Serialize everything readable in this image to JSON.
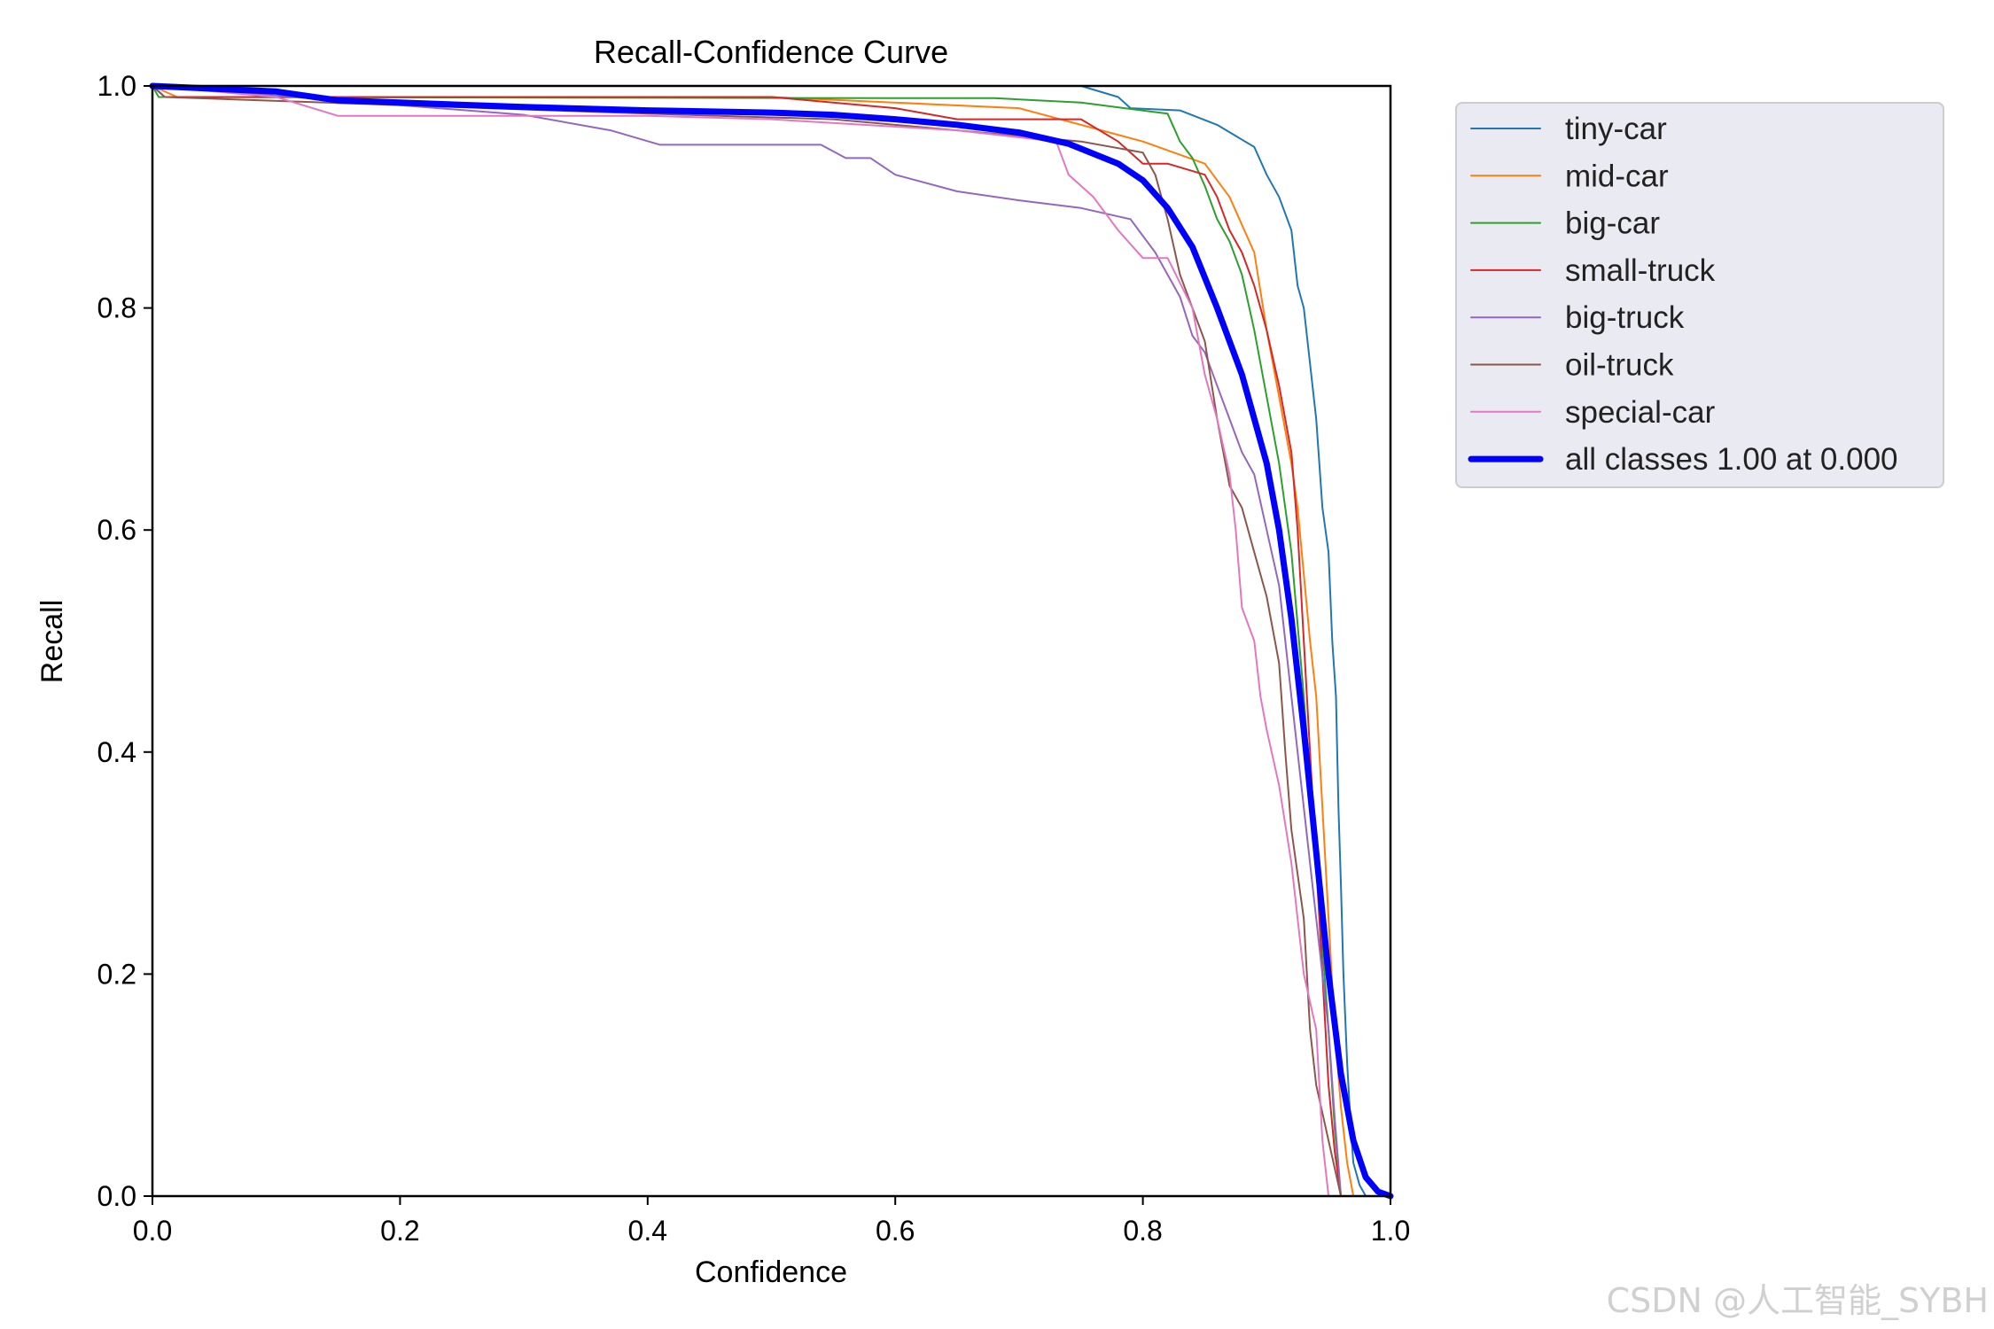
{
  "chart_data": {
    "type": "line",
    "title": "Recall-Confidence Curve",
    "xlabel": "Confidence",
    "ylabel": "Recall",
    "xlim": [
      0,
      1
    ],
    "ylim": [
      0,
      1
    ],
    "xticks": [
      "0.0",
      "0.2",
      "0.4",
      "0.6",
      "0.8",
      "1.0"
    ],
    "yticks": [
      "0.0",
      "0.2",
      "0.4",
      "0.6",
      "0.8",
      "1.0"
    ],
    "grid": false,
    "legend_position": "outside-top-right",
    "series": [
      {
        "name": "tiny-car",
        "color": "#1f77b4",
        "width": 2,
        "points": [
          [
            0,
            1.0
          ],
          [
            0.75,
            1.0
          ],
          [
            0.78,
            0.99
          ],
          [
            0.79,
            0.98
          ],
          [
            0.83,
            0.978
          ],
          [
            0.86,
            0.965
          ],
          [
            0.89,
            0.945
          ],
          [
            0.9,
            0.92
          ],
          [
            0.91,
            0.9
          ],
          [
            0.92,
            0.87
          ],
          [
            0.925,
            0.82
          ],
          [
            0.93,
            0.8
          ],
          [
            0.935,
            0.75
          ],
          [
            0.94,
            0.7
          ],
          [
            0.945,
            0.62
          ],
          [
            0.95,
            0.58
          ],
          [
            0.953,
            0.5
          ],
          [
            0.956,
            0.45
          ],
          [
            0.958,
            0.35
          ],
          [
            0.96,
            0.28
          ],
          [
            0.962,
            0.2
          ],
          [
            0.965,
            0.12
          ],
          [
            0.968,
            0.06
          ],
          [
            0.97,
            0.03
          ],
          [
            0.975,
            0.01
          ],
          [
            0.98,
            0.0
          ]
        ]
      },
      {
        "name": "mid-car",
        "color": "#ff7f0e",
        "width": 2,
        "points": [
          [
            0,
            1.0
          ],
          [
            0.02,
            0.99
          ],
          [
            0.5,
            0.99
          ],
          [
            0.7,
            0.98
          ],
          [
            0.8,
            0.95
          ],
          [
            0.85,
            0.93
          ],
          [
            0.87,
            0.9
          ],
          [
            0.89,
            0.85
          ],
          [
            0.9,
            0.78
          ],
          [
            0.91,
            0.72
          ],
          [
            0.92,
            0.66
          ],
          [
            0.925,
            0.62
          ],
          [
            0.93,
            0.56
          ],
          [
            0.935,
            0.5
          ],
          [
            0.94,
            0.45
          ],
          [
            0.945,
            0.35
          ],
          [
            0.95,
            0.25
          ],
          [
            0.955,
            0.15
          ],
          [
            0.96,
            0.08
          ],
          [
            0.965,
            0.03
          ],
          [
            0.97,
            0.0
          ]
        ]
      },
      {
        "name": "big-car",
        "color": "#2ca02c",
        "width": 2,
        "points": [
          [
            0,
            1.0
          ],
          [
            0.005,
            0.99
          ],
          [
            0.6,
            0.989
          ],
          [
            0.68,
            0.989
          ],
          [
            0.75,
            0.985
          ],
          [
            0.82,
            0.975
          ],
          [
            0.83,
            0.95
          ],
          [
            0.84,
            0.935
          ],
          [
            0.85,
            0.91
          ],
          [
            0.86,
            0.88
          ],
          [
            0.87,
            0.86
          ],
          [
            0.88,
            0.83
          ],
          [
            0.89,
            0.78
          ],
          [
            0.9,
            0.72
          ],
          [
            0.91,
            0.66
          ],
          [
            0.92,
            0.58
          ],
          [
            0.93,
            0.45
          ],
          [
            0.94,
            0.3
          ],
          [
            0.95,
            0.15
          ],
          [
            0.955,
            0.06
          ],
          [
            0.96,
            0.0
          ]
        ]
      },
      {
        "name": "small-truck",
        "color": "#d62728",
        "width": 2,
        "points": [
          [
            0,
            1.0
          ],
          [
            0.01,
            0.99
          ],
          [
            0.5,
            0.99
          ],
          [
            0.6,
            0.98
          ],
          [
            0.65,
            0.97
          ],
          [
            0.75,
            0.97
          ],
          [
            0.78,
            0.95
          ],
          [
            0.8,
            0.93
          ],
          [
            0.82,
            0.93
          ],
          [
            0.85,
            0.92
          ],
          [
            0.86,
            0.9
          ],
          [
            0.87,
            0.87
          ],
          [
            0.88,
            0.85
          ],
          [
            0.89,
            0.82
          ],
          [
            0.9,
            0.78
          ],
          [
            0.91,
            0.73
          ],
          [
            0.92,
            0.67
          ],
          [
            0.925,
            0.6
          ],
          [
            0.93,
            0.5
          ],
          [
            0.935,
            0.4
          ],
          [
            0.94,
            0.3
          ],
          [
            0.945,
            0.2
          ],
          [
            0.95,
            0.1
          ],
          [
            0.955,
            0.04
          ],
          [
            0.96,
            0.0
          ]
        ]
      },
      {
        "name": "big-truck",
        "color": "#9467bd",
        "width": 2,
        "points": [
          [
            0,
            1.0
          ],
          [
            0.3,
            0.974
          ],
          [
            0.37,
            0.96
          ],
          [
            0.41,
            0.947
          ],
          [
            0.54,
            0.947
          ],
          [
            0.56,
            0.935
          ],
          [
            0.58,
            0.935
          ],
          [
            0.6,
            0.92
          ],
          [
            0.65,
            0.905
          ],
          [
            0.7,
            0.897
          ],
          [
            0.75,
            0.89
          ],
          [
            0.79,
            0.88
          ],
          [
            0.81,
            0.85
          ],
          [
            0.83,
            0.81
          ],
          [
            0.84,
            0.775
          ],
          [
            0.85,
            0.76
          ],
          [
            0.86,
            0.73
          ],
          [
            0.87,
            0.7
          ],
          [
            0.88,
            0.67
          ],
          [
            0.89,
            0.65
          ],
          [
            0.9,
            0.6
          ],
          [
            0.91,
            0.55
          ],
          [
            0.915,
            0.5
          ],
          [
            0.92,
            0.45
          ],
          [
            0.93,
            0.35
          ],
          [
            0.94,
            0.25
          ],
          [
            0.95,
            0.15
          ],
          [
            0.955,
            0.07
          ],
          [
            0.96,
            0.0
          ]
        ]
      },
      {
        "name": "oil-truck",
        "color": "#8c564b",
        "width": 2,
        "points": [
          [
            0,
            1.0
          ],
          [
            0.01,
            0.99
          ],
          [
            0.4,
            0.975
          ],
          [
            0.55,
            0.97
          ],
          [
            0.65,
            0.96
          ],
          [
            0.75,
            0.95
          ],
          [
            0.8,
            0.94
          ],
          [
            0.81,
            0.92
          ],
          [
            0.82,
            0.88
          ],
          [
            0.83,
            0.83
          ],
          [
            0.84,
            0.8
          ],
          [
            0.85,
            0.77
          ],
          [
            0.86,
            0.7
          ],
          [
            0.87,
            0.64
          ],
          [
            0.88,
            0.62
          ],
          [
            0.89,
            0.58
          ],
          [
            0.9,
            0.54
          ],
          [
            0.91,
            0.48
          ],
          [
            0.915,
            0.4
          ],
          [
            0.92,
            0.33
          ],
          [
            0.93,
            0.25
          ],
          [
            0.935,
            0.15
          ],
          [
            0.94,
            0.1
          ],
          [
            0.95,
            0.05
          ],
          [
            0.96,
            0.0
          ]
        ]
      },
      {
        "name": "special-car",
        "color": "#e377c2",
        "width": 2,
        "points": [
          [
            0,
            1.0
          ],
          [
            0.1,
            0.99
          ],
          [
            0.15,
            0.973
          ],
          [
            0.3,
            0.973
          ],
          [
            0.4,
            0.973
          ],
          [
            0.5,
            0.97
          ],
          [
            0.65,
            0.96
          ],
          [
            0.73,
            0.95
          ],
          [
            0.74,
            0.92
          ],
          [
            0.76,
            0.9
          ],
          [
            0.78,
            0.87
          ],
          [
            0.8,
            0.845
          ],
          [
            0.82,
            0.845
          ],
          [
            0.84,
            0.8
          ],
          [
            0.85,
            0.74
          ],
          [
            0.86,
            0.7
          ],
          [
            0.87,
            0.65
          ],
          [
            0.875,
            0.6
          ],
          [
            0.88,
            0.53
          ],
          [
            0.89,
            0.5
          ],
          [
            0.895,
            0.45
          ],
          [
            0.9,
            0.42
          ],
          [
            0.91,
            0.37
          ],
          [
            0.92,
            0.3
          ],
          [
            0.93,
            0.2
          ],
          [
            0.94,
            0.15
          ],
          [
            0.945,
            0.05
          ],
          [
            0.95,
            0.0
          ]
        ]
      },
      {
        "name": "all classes 1.00 at 0.000",
        "color": "#0000ff",
        "width": 7,
        "points": [
          [
            0,
            1.0
          ],
          [
            0.1,
            0.995
          ],
          [
            0.15,
            0.987
          ],
          [
            0.2,
            0.985
          ],
          [
            0.3,
            0.981
          ],
          [
            0.4,
            0.978
          ],
          [
            0.5,
            0.976
          ],
          [
            0.55,
            0.974
          ],
          [
            0.6,
            0.97
          ],
          [
            0.65,
            0.965
          ],
          [
            0.7,
            0.958
          ],
          [
            0.74,
            0.948
          ],
          [
            0.78,
            0.93
          ],
          [
            0.8,
            0.915
          ],
          [
            0.82,
            0.89
          ],
          [
            0.84,
            0.855
          ],
          [
            0.86,
            0.8
          ],
          [
            0.88,
            0.74
          ],
          [
            0.9,
            0.66
          ],
          [
            0.91,
            0.6
          ],
          [
            0.92,
            0.52
          ],
          [
            0.93,
            0.42
          ],
          [
            0.94,
            0.31
          ],
          [
            0.95,
            0.2
          ],
          [
            0.96,
            0.11
          ],
          [
            0.97,
            0.05
          ],
          [
            0.98,
            0.017
          ],
          [
            0.99,
            0.004
          ],
          [
            1.0,
            0.0
          ]
        ]
      }
    ]
  },
  "watermark": "CSDN @人工智能_SYBH"
}
